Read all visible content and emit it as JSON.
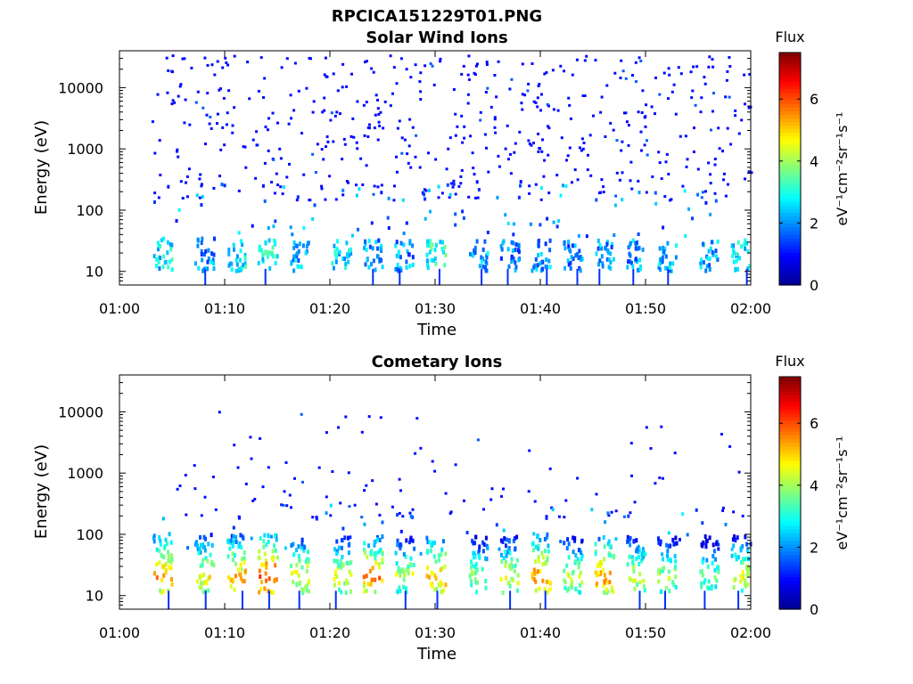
{
  "figure": {
    "filename": "RPCICA151229T01.PNG"
  },
  "colormap": [
    "#00008f",
    "#0000ff",
    "#007fff",
    "#00ffff",
    "#7fff7f",
    "#ffff00",
    "#ff7f00",
    "#ff0000",
    "#7f0000"
  ],
  "chart_data": [
    {
      "type": "heatmap",
      "title": "Solar Wind Ions",
      "xlabel": "Time",
      "ylabel": "Energy (eV)",
      "xlim": [
        "01:00",
        "02:00"
      ],
      "ylim": [
        6,
        40000
      ],
      "y_scale": "log",
      "x_ticks": [
        "01:00",
        "01:10",
        "01:20",
        "01:30",
        "01:40",
        "01:50",
        "02:00"
      ],
      "y_ticks": [
        10,
        100,
        1000,
        10000
      ],
      "y_tick_labels": [
        "10",
        "100",
        "1000",
        "10000"
      ],
      "colorbar": {
        "label": "Flux",
        "unit": "eV⁻¹cm⁻²sr⁻¹s⁻¹",
        "range": [
          0,
          7.5
        ],
        "ticks": [
          0,
          2,
          4,
          6
        ]
      },
      "clusters": [
        {
          "t": "01:04",
          "e_low": 11,
          "e_high": 38,
          "flux": 2.6
        },
        {
          "t": "01:08",
          "e_low": 11,
          "e_high": 38,
          "flux": 2.0
        },
        {
          "t": "01:11",
          "e_low": 11,
          "e_high": 35,
          "flux": 2.8
        },
        {
          "t": "01:14",
          "e_low": 11,
          "e_high": 35,
          "flux": 3.0
        },
        {
          "t": "01:17",
          "e_low": 11,
          "e_high": 35,
          "flux": 2.2
        },
        {
          "t": "01:21",
          "e_low": 11,
          "e_high": 35,
          "flux": 2.5
        },
        {
          "t": "01:24",
          "e_low": 11,
          "e_high": 35,
          "flux": 2.0
        },
        {
          "t": "01:27",
          "e_low": 11,
          "e_high": 35,
          "flux": 2.0
        },
        {
          "t": "01:30",
          "e_low": 11,
          "e_high": 35,
          "flux": 3.0
        },
        {
          "t": "01:34",
          "e_low": 11,
          "e_high": 35,
          "flux": 2.2
        },
        {
          "t": "01:37",
          "e_low": 11,
          "e_high": 35,
          "flux": 1.8
        },
        {
          "t": "01:40",
          "e_low": 11,
          "e_high": 35,
          "flux": 2.0
        },
        {
          "t": "01:43",
          "e_low": 11,
          "e_high": 35,
          "flux": 1.8
        },
        {
          "t": "01:46",
          "e_low": 11,
          "e_high": 35,
          "flux": 2.0
        },
        {
          "t": "01:49",
          "e_low": 11,
          "e_high": 35,
          "flux": 2.0
        },
        {
          "t": "01:52",
          "e_low": 11,
          "e_high": 35,
          "flux": 2.3
        },
        {
          "t": "01:56",
          "e_low": 11,
          "e_high": 35,
          "flux": 2.2
        },
        {
          "t": "01:59",
          "e_low": 11,
          "e_high": 35,
          "flux": 2.6
        }
      ],
      "sparse_scatter": {
        "t_range": [
          "01:03",
          "02:00"
        ],
        "e_range": [
          150,
          35000
        ],
        "flux": 1.0
      }
    },
    {
      "type": "heatmap",
      "title": "Cometary Ions",
      "xlabel": "Time",
      "ylabel": "Energy (eV)",
      "xlim": [
        "01:00",
        "02:00"
      ],
      "ylim": [
        6,
        40000
      ],
      "y_scale": "log",
      "x_ticks": [
        "01:00",
        "01:10",
        "01:20",
        "01:30",
        "01:40",
        "01:50",
        "02:00"
      ],
      "y_ticks": [
        10,
        100,
        1000,
        10000
      ],
      "y_tick_labels": [
        "10",
        "100",
        "1000",
        "10000"
      ],
      "colorbar": {
        "label": "Flux",
        "unit": "eV⁻¹cm⁻²sr⁻¹s⁻¹",
        "range": [
          0,
          7.5
        ],
        "ticks": [
          0,
          2,
          4,
          6
        ]
      },
      "clusters": [
        {
          "t": "01:04",
          "e_low": 12,
          "e_high": 110,
          "flux": 5.6
        },
        {
          "t": "01:08",
          "e_low": 12,
          "e_high": 110,
          "flux": 4.8
        },
        {
          "t": "01:11",
          "e_low": 12,
          "e_high": 110,
          "flux": 5.4
        },
        {
          "t": "01:14",
          "e_low": 12,
          "e_high": 110,
          "flux": 6.2
        },
        {
          "t": "01:17",
          "e_low": 12,
          "e_high": 100,
          "flux": 4.8
        },
        {
          "t": "01:21",
          "e_low": 12,
          "e_high": 100,
          "flux": 4.6
        },
        {
          "t": "01:24",
          "e_low": 12,
          "e_high": 100,
          "flux": 5.6
        },
        {
          "t": "01:27",
          "e_low": 12,
          "e_high": 100,
          "flux": 4.4
        },
        {
          "t": "01:30",
          "e_low": 12,
          "e_high": 100,
          "flux": 5.4
        },
        {
          "t": "01:34",
          "e_low": 12,
          "e_high": 100,
          "flux": 4.2
        },
        {
          "t": "01:37",
          "e_low": 12,
          "e_high": 100,
          "flux": 4.6
        },
        {
          "t": "01:40",
          "e_low": 12,
          "e_high": 110,
          "flux": 5.6
        },
        {
          "t": "01:43",
          "e_low": 12,
          "e_high": 100,
          "flux": 4.4
        },
        {
          "t": "01:46",
          "e_low": 12,
          "e_high": 100,
          "flux": 5.6
        },
        {
          "t": "01:49",
          "e_low": 12,
          "e_high": 100,
          "flux": 4.6
        },
        {
          "t": "01:52",
          "e_low": 12,
          "e_high": 100,
          "flux": 4.2
        },
        {
          "t": "01:56",
          "e_low": 12,
          "e_high": 100,
          "flux": 3.8
        },
        {
          "t": "01:59",
          "e_low": 12,
          "e_high": 100,
          "flux": 4.6
        }
      ],
      "sparse_scatter": {
        "t_range": [
          "01:04",
          "02:00"
        ],
        "e_range": [
          200,
          11000
        ],
        "flux": 1.0
      }
    }
  ]
}
